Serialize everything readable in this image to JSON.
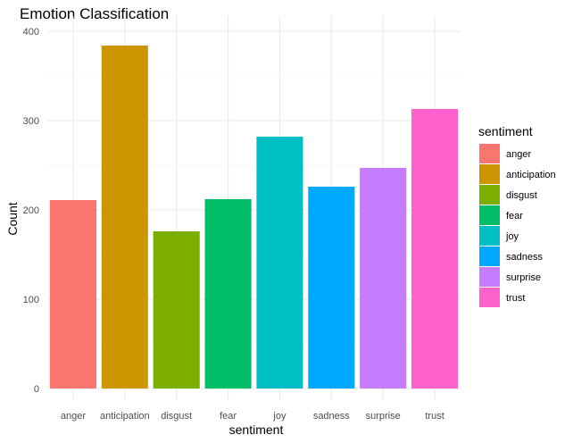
{
  "chart_data": {
    "type": "bar",
    "title": "Emotion Classification",
    "xlabel": "sentiment",
    "ylabel": "Count",
    "categories": [
      "anger",
      "anticipation",
      "disgust",
      "fear",
      "joy",
      "sadness",
      "surprise",
      "trust"
    ],
    "values": [
      211,
      384,
      176,
      212,
      282,
      226,
      247,
      313
    ],
    "colors": [
      "#F8766D",
      "#CD9600",
      "#7CAE00",
      "#00BE67",
      "#00BFC4",
      "#00A9FF",
      "#C77CFF",
      "#FF61CC"
    ],
    "ylim": [
      0,
      400
    ],
    "yticks": [
      0,
      100,
      200,
      300,
      400
    ],
    "grid": true,
    "legend": {
      "title": "sentiment",
      "placement": "right",
      "entries": [
        "anger",
        "anticipation",
        "disgust",
        "fear",
        "joy",
        "sadness",
        "surprise",
        "trust"
      ]
    }
  }
}
